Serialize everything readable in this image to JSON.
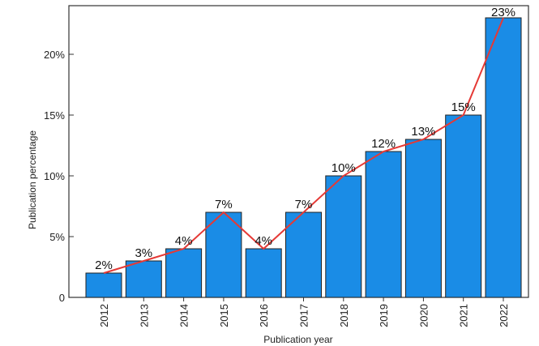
{
  "chart_data": {
    "type": "bar",
    "categories": [
      "2012",
      "2013",
      "2014",
      "2015",
      "2016",
      "2017",
      "2018",
      "2019",
      "2020",
      "2021",
      "2022"
    ],
    "values": [
      2,
      3,
      4,
      7,
      4,
      7,
      10,
      12,
      13,
      15,
      23
    ],
    "data_labels": [
      "2%",
      "3%",
      "4%",
      "7%",
      "4%",
      "7%",
      "10%",
      "12%",
      "13%",
      "15%",
      "23%"
    ],
    "overlay": {
      "type": "line",
      "values": [
        2,
        3,
        4,
        7,
        4,
        7,
        10,
        12,
        13,
        15,
        23
      ],
      "color": "#e53935"
    },
    "title": "",
    "xlabel": "Publication year",
    "ylabel": "Publication percentage",
    "ylim": [
      0,
      24
    ],
    "yticks": [
      0,
      5,
      10,
      15,
      20
    ],
    "ytick_labels": [
      "0",
      "5%",
      "10%",
      "15%",
      "20%"
    ],
    "grid": false,
    "bar_color": "#1a8ce6",
    "bar_edge_color": "#222222"
  }
}
